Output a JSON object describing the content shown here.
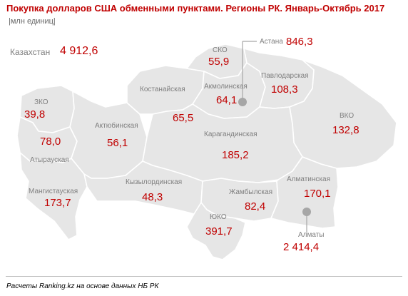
{
  "header": {
    "title": "Покупка долларов США обменными пунктами. Регионы РК. Январь-Октябрь 2017",
    "unit": "|млн единиц|"
  },
  "total": {
    "label": "Казахстан",
    "value": "4 912,6"
  },
  "regions": [
    {
      "id": "sko",
      "name": "СКО",
      "value": "55,9"
    },
    {
      "id": "kostanay",
      "name": "Костанайская",
      "value": "65,5"
    },
    {
      "id": "akmola",
      "name": "Акмолинская",
      "value": "64,1"
    },
    {
      "id": "pavlodar",
      "name": "Павлодарская",
      "value": "108,3"
    },
    {
      "id": "astana",
      "name": "Астана",
      "value": "846,3"
    },
    {
      "id": "zko",
      "name": "ЗКО",
      "value": "39,8"
    },
    {
      "id": "aktobe",
      "name": "Актюбинская",
      "value": "56,1"
    },
    {
      "id": "vko",
      "name": "ВКО",
      "value": "132,8"
    },
    {
      "id": "atyrau",
      "name": "Атырауская",
      "value": "78,0"
    },
    {
      "id": "karaganda",
      "name": "Карагандинская",
      "value": "185,2"
    },
    {
      "id": "mangystau",
      "name": "Мангистауская",
      "value": "173,7"
    },
    {
      "id": "kyzylorda",
      "name": "Кызылординская",
      "value": "48,3"
    },
    {
      "id": "zhambyl",
      "name": "Жамбылская",
      "value": "82,4"
    },
    {
      "id": "almaty-region",
      "name": "Алматинская",
      "value": "170,1"
    },
    {
      "id": "uko",
      "name": "ЮКО",
      "value": "391,7"
    },
    {
      "id": "almaty-city",
      "name": "Алматы",
      "value": "2 414,4"
    }
  ],
  "footer": "Расчеты Ranking.kz на основе данных НБ РК",
  "colors": {
    "region_fill": "#e6e6e6",
    "region_border": "#ffffff",
    "value": "#c00000",
    "label": "#7f7f7f",
    "city_marker": "#a6a6a6"
  }
}
